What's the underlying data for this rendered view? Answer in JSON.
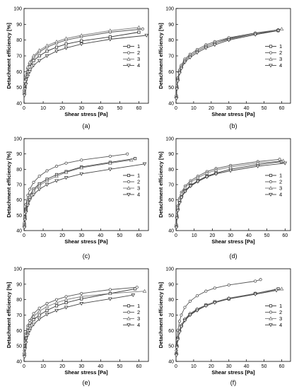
{
  "chart_data": [
    {
      "panel_label": "(a)",
      "type": "line",
      "xlabel": "Shear stress [Pa]",
      "ylabel": "Detachment efficiency [%]",
      "xlim": [
        0,
        65
      ],
      "ylim": [
        40,
        100
      ],
      "xticks": [
        0,
        10,
        20,
        30,
        40,
        50,
        60
      ],
      "yticks": [
        40,
        50,
        60,
        70,
        80,
        90,
        100
      ],
      "legend": {
        "position": "right",
        "entries": [
          "1",
          "2",
          "3",
          "4"
        ]
      },
      "series": [
        {
          "name": "1",
          "x": [
            0.2,
            0.5,
            1,
            2,
            3,
            5,
            8,
            12,
            17,
            22,
            30,
            45,
            60
          ],
          "y": [
            47,
            51,
            55,
            60,
            63,
            67,
            70,
            73,
            75.5,
            77.5,
            79.5,
            82,
            85
          ]
        },
        {
          "name": "2",
          "x": [
            0.2,
            0.5,
            1,
            2,
            3,
            5,
            8,
            12,
            17,
            22,
            30,
            45,
            62
          ],
          "y": [
            48,
            53,
            57,
            62,
            65,
            69,
            72.5,
            75.5,
            78,
            80,
            82,
            85,
            87
          ]
        },
        {
          "name": "3",
          "x": [
            0.2,
            0.5,
            1,
            2,
            3,
            5,
            8,
            12,
            17,
            22,
            30,
            45,
            60
          ],
          "y": [
            49,
            54,
            58,
            63,
            66,
            70,
            73.5,
            76.5,
            79,
            81,
            83,
            86,
            88
          ]
        },
        {
          "name": "4",
          "x": [
            0.2,
            0.5,
            1,
            2,
            3,
            5,
            8,
            12,
            17,
            22,
            30,
            45,
            64
          ],
          "y": [
            45,
            49,
            52,
            57,
            60,
            64,
            67,
            70,
            73,
            75,
            77.5,
            80.5,
            83
          ]
        }
      ]
    },
    {
      "panel_label": "(b)",
      "type": "line",
      "xlabel": "Shear stress [Pa]",
      "ylabel": "Detachment efficiency [%]",
      "xlim": [
        0,
        65
      ],
      "ylim": [
        40,
        100
      ],
      "xticks": [
        0,
        10,
        20,
        30,
        40,
        50,
        60
      ],
      "yticks": [
        40,
        50,
        60,
        70,
        80,
        90,
        100
      ],
      "legend": {
        "position": "right",
        "entries": [
          "1",
          "2",
          "3",
          "4"
        ]
      },
      "series": [
        {
          "name": "1",
          "x": [
            0.2,
            0.5,
            1,
            2,
            3,
            5,
            8,
            12,
            17,
            22,
            30,
            45,
            58
          ],
          "y": [
            44,
            50,
            55,
            60,
            63,
            67,
            70,
            73,
            76,
            78,
            81,
            84,
            86
          ]
        },
        {
          "name": "2",
          "x": [
            0.2,
            0.5,
            1,
            2,
            3,
            5,
            8,
            12,
            17,
            22,
            30,
            45,
            58
          ],
          "y": [
            45,
            51,
            56,
            61,
            64,
            68,
            71,
            74,
            77,
            79,
            81.5,
            84.5,
            86.5
          ]
        },
        {
          "name": "3",
          "x": [
            0.2,
            0.5,
            1,
            2,
            3,
            5,
            8,
            12,
            17,
            22,
            30,
            45,
            60
          ],
          "y": [
            44,
            50,
            55,
            60,
            63,
            67,
            70,
            73,
            76,
            78,
            80.5,
            84,
            87
          ]
        },
        {
          "name": "4",
          "x": [
            0.2,
            0.5,
            1,
            2,
            3,
            5,
            8,
            12,
            17,
            22,
            30,
            45,
            58
          ],
          "y": [
            43,
            49,
            54,
            59,
            62,
            66,
            69,
            72,
            75,
            77,
            80,
            83.5,
            86
          ]
        }
      ]
    },
    {
      "panel_label": "(c)",
      "type": "line",
      "xlabel": "Shear stress [Pa]",
      "ylabel": "Detachment efficiency [%]",
      "xlim": [
        0,
        65
      ],
      "ylim": [
        40,
        100
      ],
      "xticks": [
        0,
        10,
        20,
        30,
        40,
        50,
        60
      ],
      "yticks": [
        40,
        50,
        60,
        70,
        80,
        90,
        100
      ],
      "legend": {
        "position": "right",
        "entries": [
          "1",
          "2",
          "3",
          "4"
        ]
      },
      "series": [
        {
          "name": "1",
          "x": [
            0.2,
            0.5,
            1,
            2,
            3,
            5,
            8,
            12,
            17,
            22,
            30,
            45,
            58
          ],
          "y": [
            44,
            49,
            54,
            59,
            63,
            67,
            70.5,
            73.5,
            76.5,
            78.5,
            81.5,
            84.5,
            87
          ]
        },
        {
          "name": "2",
          "x": [
            0.2,
            0.5,
            1,
            2,
            3,
            5,
            8,
            12,
            17,
            22,
            30,
            45,
            54
          ],
          "y": [
            45,
            51,
            57,
            63,
            67,
            71.5,
            75.5,
            79,
            82,
            84,
            86,
            88.5,
            90
          ]
        },
        {
          "name": "3",
          "x": [
            0.2,
            0.5,
            1,
            2,
            3,
            5,
            8,
            12,
            17,
            22,
            30,
            45,
            56
          ],
          "y": [
            43,
            48,
            53,
            58,
            62,
            66,
            69.5,
            72.5,
            75.5,
            78,
            81,
            84,
            86
          ]
        },
        {
          "name": "4",
          "x": [
            0.2,
            0.5,
            1,
            2,
            3,
            5,
            8,
            12,
            17,
            22,
            30,
            45,
            63
          ],
          "y": [
            42,
            47,
            52,
            56.5,
            60,
            63.5,
            67,
            70,
            72.5,
            74.5,
            77,
            80,
            83.5
          ]
        }
      ]
    },
    {
      "panel_label": "(d)",
      "type": "line",
      "xlabel": "Shear stress [Pa]",
      "ylabel": "Detachment efficiency [%]",
      "xlim": [
        0,
        63
      ],
      "ylim": [
        40,
        100
      ],
      "xticks": [
        0,
        10,
        20,
        30,
        40,
        50,
        60
      ],
      "yticks": [
        40,
        50,
        60,
        70,
        80,
        90,
        100
      ],
      "legend": {
        "position": "right",
        "entries": [
          "1",
          "2",
          "3",
          "4"
        ]
      },
      "series": [
        {
          "name": "1",
          "x": [
            0.2,
            0.5,
            1,
            2,
            3,
            5,
            8,
            12,
            17,
            22,
            30,
            45,
            58
          ],
          "y": [
            43,
            49,
            54,
            59,
            62,
            66,
            69.5,
            72.5,
            75.5,
            77.5,
            80,
            83,
            85
          ]
        },
        {
          "name": "2",
          "x": [
            0.2,
            0.5,
            1,
            2,
            3,
            5,
            8,
            12,
            17,
            22,
            30,
            45,
            57
          ],
          "y": [
            44,
            50,
            56,
            61,
            65,
            69,
            72.5,
            75.5,
            78.5,
            80.5,
            82.5,
            85,
            86.5
          ]
        },
        {
          "name": "3",
          "x": [
            0.2,
            0.5,
            1,
            2,
            3,
            5,
            8,
            12,
            17,
            22,
            30,
            45,
            59
          ],
          "y": [
            43,
            49,
            55,
            60,
            64,
            68,
            71.5,
            74.5,
            77.5,
            79.5,
            81.5,
            84,
            85.5
          ]
        },
        {
          "name": "4",
          "x": [
            0.2,
            0.5,
            1,
            2,
            3,
            5,
            8,
            12,
            17,
            22,
            30,
            45,
            60
          ],
          "y": [
            42,
            48,
            53,
            58,
            61.5,
            65.5,
            69,
            72,
            75,
            77,
            79,
            82,
            84
          ]
        }
      ]
    },
    {
      "panel_label": "(e)",
      "type": "line",
      "xlabel": "Shear stress [Pa]",
      "ylabel": "Detachment efficiency [%]",
      "xlim": [
        0,
        65
      ],
      "ylim": [
        40,
        100
      ],
      "xticks": [
        0,
        10,
        20,
        30,
        40,
        50,
        60
      ],
      "yticks": [
        40,
        50,
        60,
        70,
        80,
        90,
        100
      ],
      "legend": {
        "position": "right",
        "entries": [
          "1",
          "2",
          "3",
          "4"
        ]
      },
      "series": [
        {
          "name": "1",
          "x": [
            0.2,
            0.5,
            1,
            2,
            3,
            5,
            8,
            12,
            17,
            22,
            30,
            45,
            58
          ],
          "y": [
            45,
            50,
            55,
            60,
            63,
            67,
            70,
            73,
            76,
            78,
            80.5,
            84,
            87
          ]
        },
        {
          "name": "2",
          "x": [
            0.2,
            0.5,
            1,
            2,
            3,
            5,
            8,
            12,
            17,
            22,
            30,
            45,
            59
          ],
          "y": [
            47,
            53,
            58,
            63,
            66.5,
            71,
            74.5,
            77.5,
            80,
            82,
            84,
            86.5,
            88
          ]
        },
        {
          "name": "3",
          "x": [
            0.2,
            0.5,
            1,
            2,
            3,
            5,
            8,
            12,
            17,
            22,
            30,
            45,
            63
          ],
          "y": [
            46,
            52,
            57,
            62,
            65,
            69,
            72.5,
            75.5,
            78,
            80,
            82,
            84,
            85.5
          ]
        },
        {
          "name": "4",
          "x": [
            0.2,
            0.5,
            1,
            2,
            3,
            5,
            8,
            12,
            17,
            22,
            30,
            45,
            57
          ],
          "y": [
            43,
            48,
            52,
            57,
            60,
            64,
            67.5,
            70.5,
            73,
            75,
            77.5,
            80.5,
            83
          ]
        }
      ]
    },
    {
      "panel_label": "(f)",
      "type": "line",
      "xlabel": "Shear stress [Pa]",
      "ylabel": "Detachment efficiency [%]",
      "xlim": [
        0,
        65
      ],
      "ylim": [
        40,
        100
      ],
      "xticks": [
        0,
        10,
        20,
        30,
        40,
        50,
        60
      ],
      "yticks": [
        40,
        50,
        60,
        70,
        80,
        90,
        100
      ],
      "legend": {
        "position": "right",
        "entries": [
          "1",
          "2",
          "3",
          "4"
        ]
      },
      "series": [
        {
          "name": "1",
          "x": [
            0.2,
            0.5,
            1,
            2,
            3,
            5,
            8,
            12,
            17,
            22,
            30,
            45,
            58
          ],
          "y": [
            45,
            50,
            55,
            60,
            63,
            67,
            70.5,
            73.5,
            76.5,
            78.5,
            80.5,
            84,
            87
          ]
        },
        {
          "name": "2",
          "x": [
            0.2,
            0.5,
            1,
            2,
            3,
            5,
            8,
            12,
            17,
            22,
            30,
            45,
            48
          ],
          "y": [
            47,
            54,
            60,
            66,
            70,
            75,
            79,
            82.5,
            85.5,
            87.5,
            89.5,
            92,
            93
          ]
        },
        {
          "name": "3",
          "x": [
            0.2,
            0.5,
            1,
            2,
            3,
            5,
            8,
            12,
            17,
            22,
            30,
            45,
            60
          ],
          "y": [
            45,
            50,
            55,
            60,
            63.5,
            67.5,
            71,
            74,
            76.5,
            78.5,
            81,
            84,
            87
          ]
        },
        {
          "name": "4",
          "x": [
            0.2,
            0.5,
            1,
            2,
            3,
            5,
            8,
            12,
            17,
            22,
            30,
            45,
            57
          ],
          "y": [
            44,
            49,
            54,
            59,
            62.5,
            66.5,
            70,
            73,
            76,
            78,
            80.5,
            83.5,
            86
          ]
        }
      ]
    }
  ]
}
